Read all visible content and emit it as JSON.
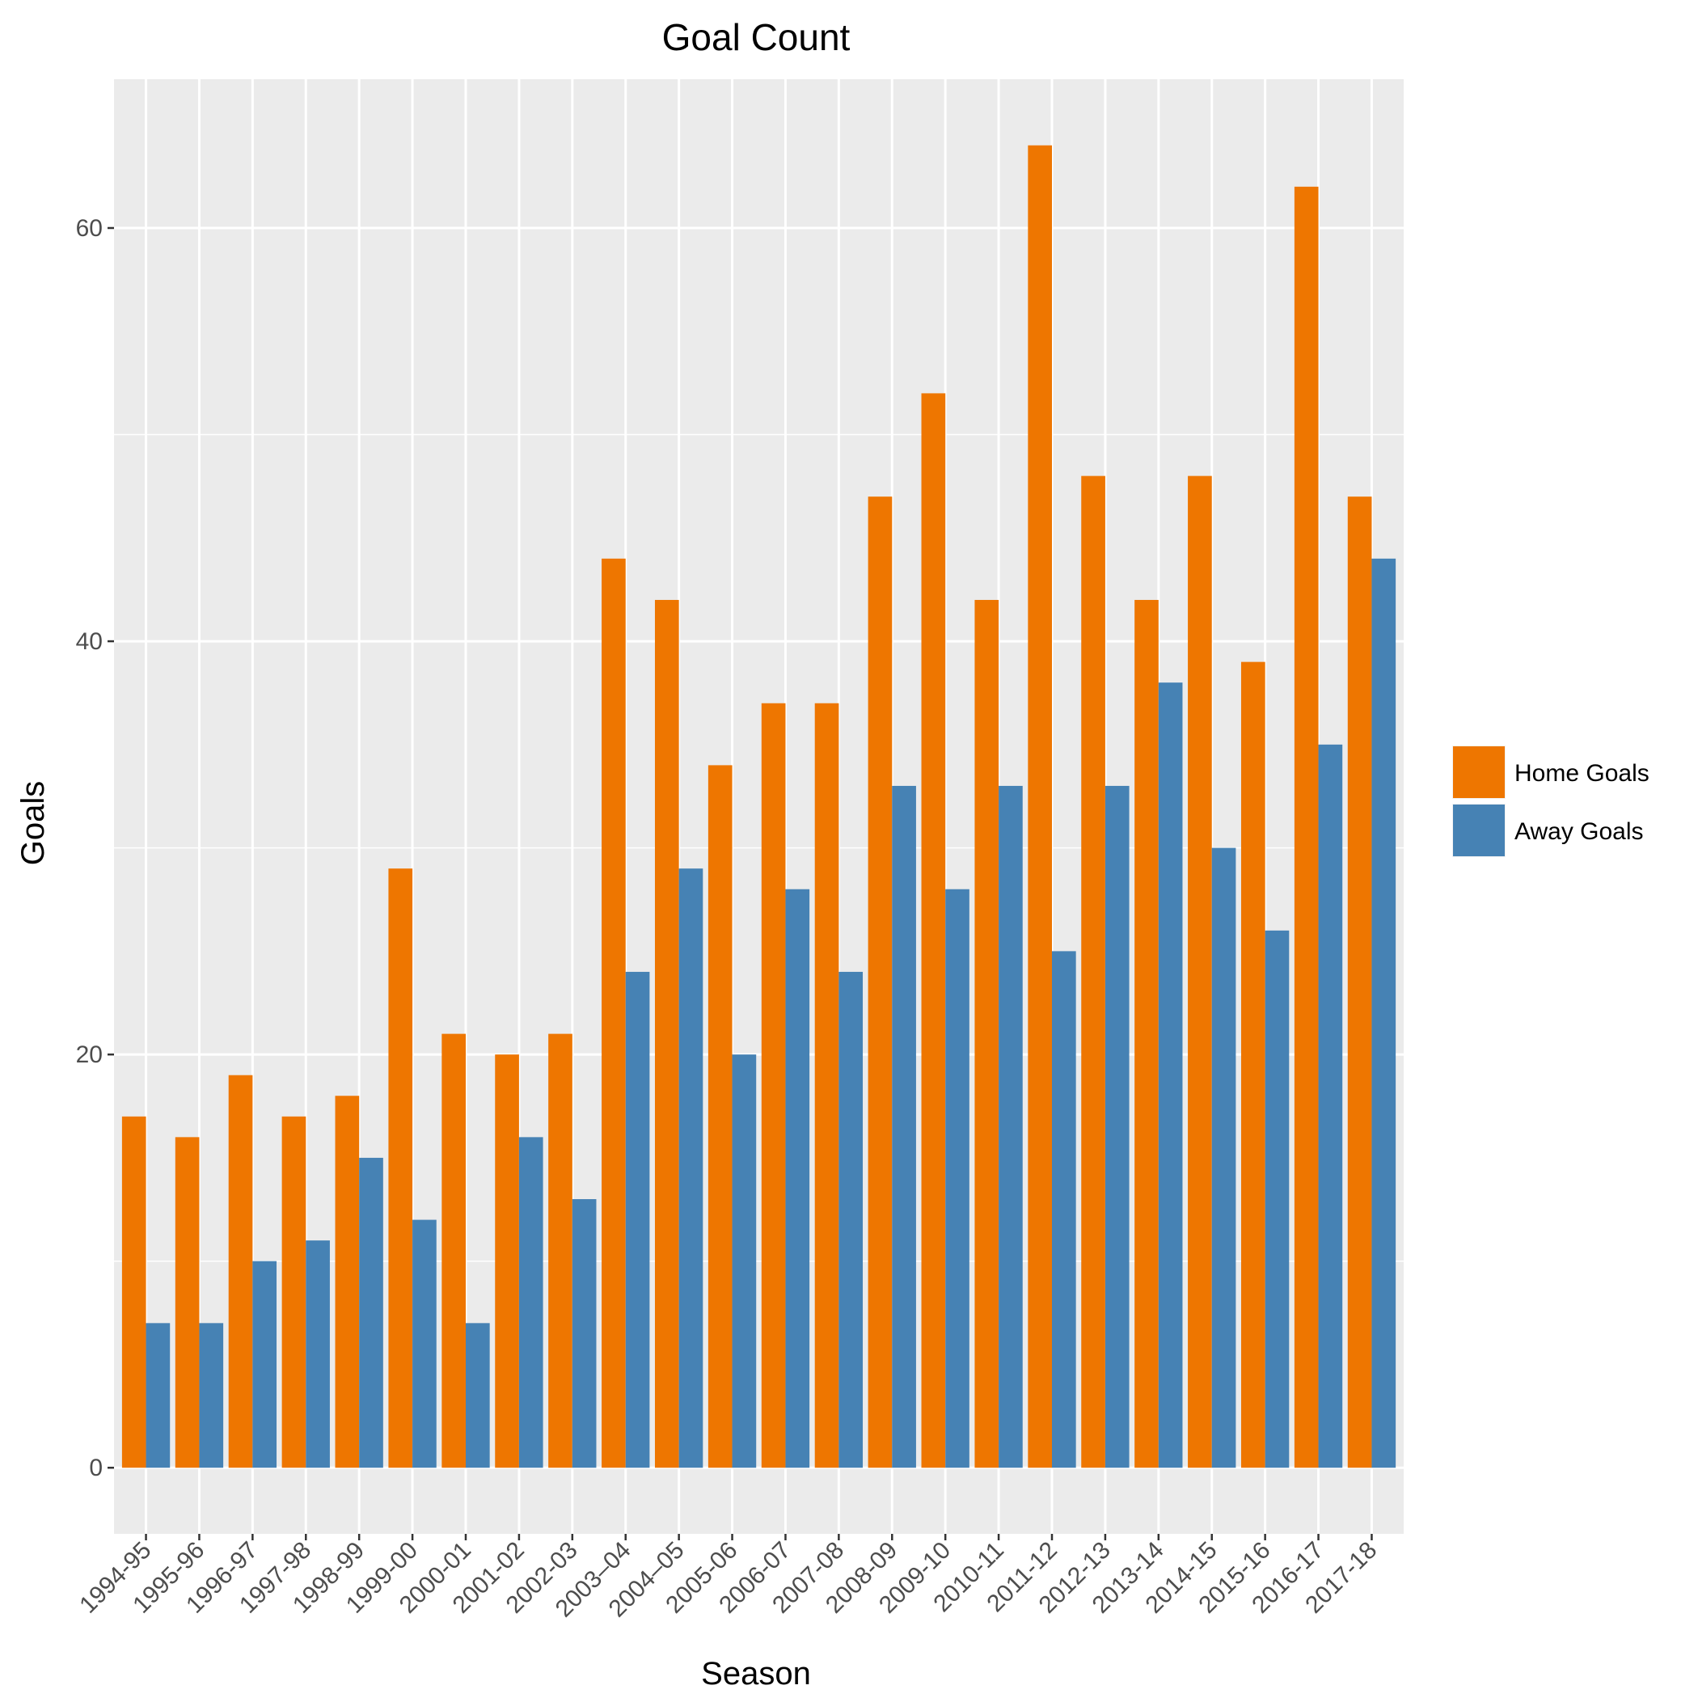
{
  "chart_data": {
    "type": "bar",
    "title": "Goal Count",
    "xlabel": "Season",
    "ylabel": "Goals",
    "categories": [
      "1994-95",
      "1995-96",
      "1996-97",
      "1997-98",
      "1998-99",
      "1999-00",
      "2000-01",
      "2001-02",
      "2002-03",
      "2003–04",
      "2004–05",
      "2005-06",
      "2006-07",
      "2007-08",
      "2008-09",
      "2009-10",
      "2010-11",
      "2011-12",
      "2012-13",
      "2013-14",
      "2014-15",
      "2015-16",
      "2016-17",
      "2017-18"
    ],
    "series": [
      {
        "name": "Home Goals",
        "color": "#ee7600",
        "values": [
          17,
          16,
          19,
          17,
          18,
          29,
          21,
          20,
          21,
          44,
          42,
          34,
          37,
          37,
          47,
          52,
          42,
          64,
          48,
          42,
          48,
          39,
          62,
          47
        ]
      },
      {
        "name": "Away Goals",
        "color": "#4682b4",
        "values": [
          7,
          7,
          10,
          11,
          15,
          12,
          7,
          16,
          13,
          24,
          29,
          20,
          28,
          24,
          33,
          28,
          33,
          25,
          33,
          38,
          30,
          26,
          35,
          44
        ]
      }
    ],
    "ylim": [
      -3.2,
      67.2
    ],
    "yticks": [
      0,
      20,
      40,
      60
    ],
    "grid": true,
    "legend_position": "right",
    "panel_background": "#ebebeb"
  }
}
